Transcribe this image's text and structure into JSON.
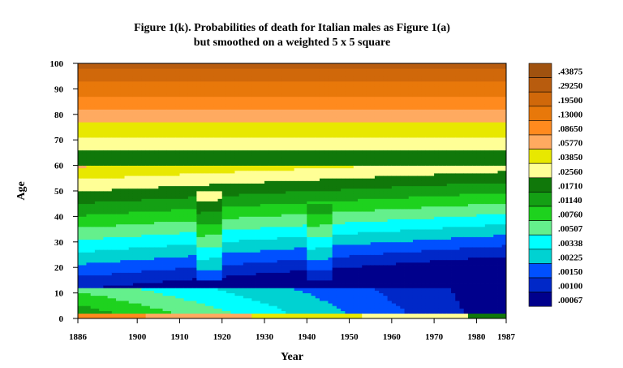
{
  "chart_data": {
    "type": "heatmap",
    "title": "Figure 1(k). Probabilities of death for Italian males as Figure 1(a)",
    "subtitle": "but smoothed on a weighted 5 x 5 square",
    "xlabel": "Year",
    "ylabel": "Age",
    "xlim": [
      1886,
      1987
    ],
    "ylim": [
      0,
      100
    ],
    "x_ticks": [
      "1886",
      "1900",
      "1910",
      "1920",
      "1930",
      "1940",
      "1950",
      "1960",
      "1970",
      "1980",
      "1987"
    ],
    "y_ticks": [
      "0",
      "10",
      "20",
      "30",
      "40",
      "50",
      "60",
      "70",
      "80",
      "90",
      "100"
    ],
    "legend": {
      "placement": "right",
      "levels": [
        ".43875",
        ".29250",
        ".19500",
        ".13000",
        ".08650",
        ".05770",
        ".03850",
        ".02560",
        ".01710",
        ".01140",
        ".00760",
        ".00507",
        ".00338",
        ".00225",
        ".00150",
        ".00100",
        ".00067"
      ],
      "colors": [
        "#A0520F",
        "#B85C0E",
        "#D0680A",
        "#E8780A",
        "#FF8A1E",
        "#FFAA60",
        "#E8E800",
        "#FFFF96",
        "#10780A",
        "#14A014",
        "#1ED21E",
        "#64F08C",
        "#00FFFF",
        "#00D2D2",
        "#0050FF",
        "#0028C8",
        "#00008C"
      ]
    }
  }
}
